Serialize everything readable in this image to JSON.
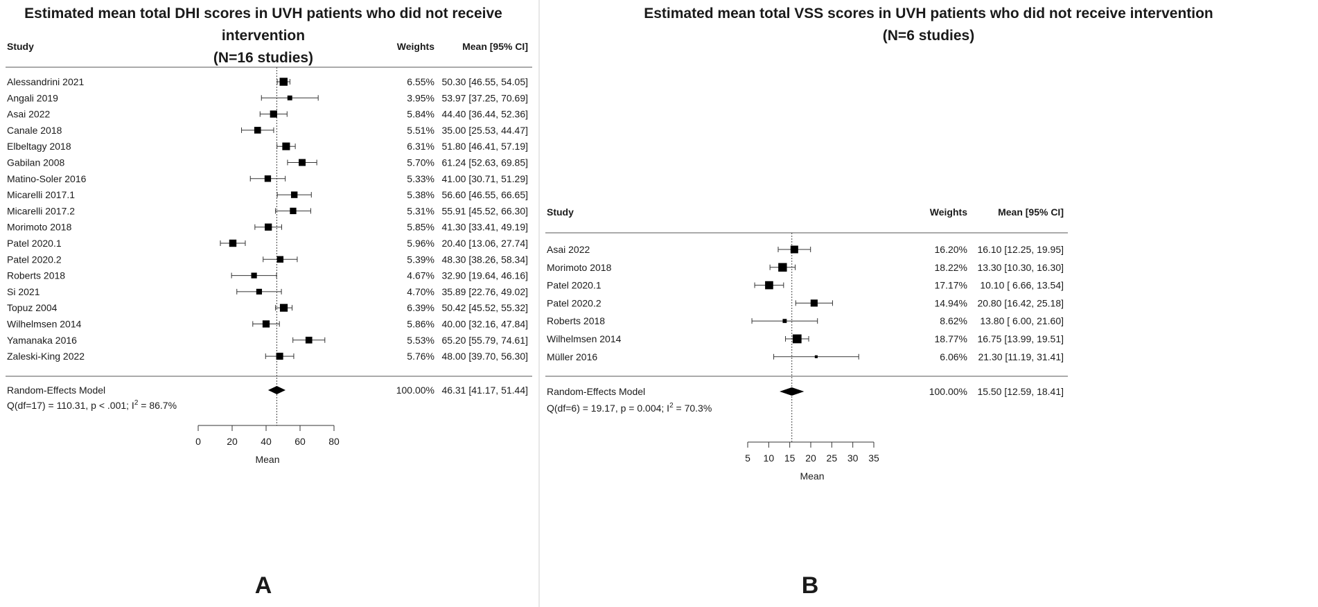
{
  "chart_data": [
    {
      "type": "forest",
      "panel_label": "A",
      "title_line1": "Estimated mean total DHI scores in UVH patients who did not receive intervention",
      "title_line2": "(N=16 studies)",
      "header_study": "Study",
      "header_weights": "Weights",
      "header_mean": "Mean [95% CI]",
      "xlabel": "Mean",
      "xlim": [
        0,
        80
      ],
      "ticks": [
        "0",
        "20",
        "40",
        "60",
        "80"
      ],
      "tick_values": [
        0,
        20,
        40,
        60,
        80
      ],
      "studies": [
        {
          "name": "Alessandrini 2021",
          "weight": "6.55%",
          "mean_ci": "50.30 [46.55, 54.05]",
          "mean": 50.3,
          "lo": 46.55,
          "hi": 54.05,
          "w": 6.55
        },
        {
          "name": "Angali 2019",
          "weight": "3.95%",
          "mean_ci": "53.97 [37.25, 70.69]",
          "mean": 53.97,
          "lo": 37.25,
          "hi": 70.69,
          "w": 3.95
        },
        {
          "name": "Asai 2022",
          "weight": "5.84%",
          "mean_ci": "44.40 [36.44, 52.36]",
          "mean": 44.4,
          "lo": 36.44,
          "hi": 52.36,
          "w": 5.84
        },
        {
          "name": "Canale 2018",
          "weight": "5.51%",
          "mean_ci": "35.00 [25.53, 44.47]",
          "mean": 35.0,
          "lo": 25.53,
          "hi": 44.47,
          "w": 5.51
        },
        {
          "name": "Elbeltagy 2018",
          "weight": "6.31%",
          "mean_ci": "51.80 [46.41, 57.19]",
          "mean": 51.8,
          "lo": 46.41,
          "hi": 57.19,
          "w": 6.31
        },
        {
          "name": "Gabilan 2008",
          "weight": "5.70%",
          "mean_ci": "61.24 [52.63, 69.85]",
          "mean": 61.24,
          "lo": 52.63,
          "hi": 69.85,
          "w": 5.7
        },
        {
          "name": "Matino-Soler 2016",
          "weight": "5.33%",
          "mean_ci": "41.00 [30.71, 51.29]",
          "mean": 41.0,
          "lo": 30.71,
          "hi": 51.29,
          "w": 5.33
        },
        {
          "name": "Micarelli 2017.1",
          "weight": "5.38%",
          "mean_ci": "56.60 [46.55, 66.65]",
          "mean": 56.6,
          "lo": 46.55,
          "hi": 66.65,
          "w": 5.38
        },
        {
          "name": "Micarelli 2017.2",
          "weight": "5.31%",
          "mean_ci": "55.91 [45.52, 66.30]",
          "mean": 55.91,
          "lo": 45.52,
          "hi": 66.3,
          "w": 5.31
        },
        {
          "name": "Morimoto 2018",
          "weight": "5.85%",
          "mean_ci": "41.30 [33.41, 49.19]",
          "mean": 41.3,
          "lo": 33.41,
          "hi": 49.19,
          "w": 5.85
        },
        {
          "name": "Patel 2020.1",
          "weight": "5.96%",
          "mean_ci": "20.40 [13.06, 27.74]",
          "mean": 20.4,
          "lo": 13.06,
          "hi": 27.74,
          "w": 5.96
        },
        {
          "name": "Patel 2020.2",
          "weight": "5.39%",
          "mean_ci": "48.30 [38.26, 58.34]",
          "mean": 48.3,
          "lo": 38.26,
          "hi": 58.34,
          "w": 5.39
        },
        {
          "name": "Roberts 2018",
          "weight": "4.67%",
          "mean_ci": "32.90 [19.64, 46.16]",
          "mean": 32.9,
          "lo": 19.64,
          "hi": 46.16,
          "w": 4.67
        },
        {
          "name": "Si 2021",
          "weight": "4.70%",
          "mean_ci": "35.89 [22.76, 49.02]",
          "mean": 35.89,
          "lo": 22.76,
          "hi": 49.02,
          "w": 4.7
        },
        {
          "name": "Topuz 2004",
          "weight": "6.39%",
          "mean_ci": "50.42 [45.52, 55.32]",
          "mean": 50.42,
          "lo": 45.52,
          "hi": 55.32,
          "w": 6.39
        },
        {
          "name": "Wilhelmsen 2014",
          "weight": "5.86%",
          "mean_ci": "40.00 [32.16, 47.84]",
          "mean": 40.0,
          "lo": 32.16,
          "hi": 47.84,
          "w": 5.86
        },
        {
          "name": "Yamanaka 2016",
          "weight": "5.53%",
          "mean_ci": "65.20 [55.79, 74.61]",
          "mean": 65.2,
          "lo": 55.79,
          "hi": 74.61,
          "w": 5.53
        },
        {
          "name": "Zaleski-King 2022",
          "weight": "5.76%",
          "mean_ci": "48.00 [39.70, 56.30]",
          "mean": 48.0,
          "lo": 39.7,
          "hi": 56.3,
          "w": 5.76
        }
      ],
      "summary": {
        "name": "Random-Effects Model",
        "weight": "100.00%",
        "mean_ci": "46.31 [41.17, 51.44]",
        "mean": 46.31,
        "lo": 41.17,
        "hi": 51.44
      },
      "heterogeneity_prefix": "Q(df=17) = 110.31, p < .001; I",
      "heterogeneity_sup": "2",
      "heterogeneity_suffix": " = 86.7%"
    },
    {
      "type": "forest",
      "panel_label": "B",
      "title_line1": "Estimated mean total VSS scores in UVH patients who did not receive intervention",
      "title_line2": "(N=6 studies)",
      "header_study": "Study",
      "header_weights": "Weights",
      "header_mean": "Mean [95% CI]",
      "xlabel": "Mean",
      "xlim": [
        5,
        35
      ],
      "ticks": [
        "5",
        "10",
        "15",
        "20",
        "25",
        "30",
        "35"
      ],
      "tick_values": [
        5,
        10,
        15,
        20,
        25,
        30,
        35
      ],
      "studies": [
        {
          "name": "Asai 2022",
          "weight": "16.20%",
          "mean_ci": "16.10 [12.25, 19.95]",
          "mean": 16.1,
          "lo": 12.25,
          "hi": 19.95,
          "w": 16.2
        },
        {
          "name": "Morimoto 2018",
          "weight": "18.22%",
          "mean_ci": "13.30 [10.30, 16.30]",
          "mean": 13.3,
          "lo": 10.3,
          "hi": 16.3,
          "w": 18.22
        },
        {
          "name": "Patel 2020.1",
          "weight": "17.17%",
          "mean_ci": "10.10 [ 6.66, 13.54]",
          "mean": 10.1,
          "lo": 6.66,
          "hi": 13.54,
          "w": 17.17
        },
        {
          "name": "Patel 2020.2",
          "weight": "14.94%",
          "mean_ci": "20.80 [16.42, 25.18]",
          "mean": 20.8,
          "lo": 16.42,
          "hi": 25.18,
          "w": 14.94
        },
        {
          "name": "Roberts 2018",
          "weight": "8.62%",
          "mean_ci": "13.80 [ 6.00, 21.60]",
          "mean": 13.8,
          "lo": 6.0,
          "hi": 21.6,
          "w": 8.62
        },
        {
          "name": "Wilhelmsen 2014",
          "weight": "18.77%",
          "mean_ci": "16.75 [13.99, 19.51]",
          "mean": 16.75,
          "lo": 13.99,
          "hi": 19.51,
          "w": 18.77
        },
        {
          "name": "Müller 2016",
          "weight": "6.06%",
          "mean_ci": "21.30 [11.19, 31.41]",
          "mean": 21.3,
          "lo": 11.19,
          "hi": 31.41,
          "w": 6.06
        }
      ],
      "summary": {
        "name": "Random-Effects Model",
        "weight": "100.00%",
        "mean_ci": "15.50 [12.59, 18.41]",
        "mean": 15.5,
        "lo": 12.59,
        "hi": 18.41
      },
      "heterogeneity_prefix": "Q(df=6) = 19.17, p = 0.004; I",
      "heterogeneity_sup": "2",
      "heterogeneity_suffix": " = 70.3%"
    }
  ]
}
